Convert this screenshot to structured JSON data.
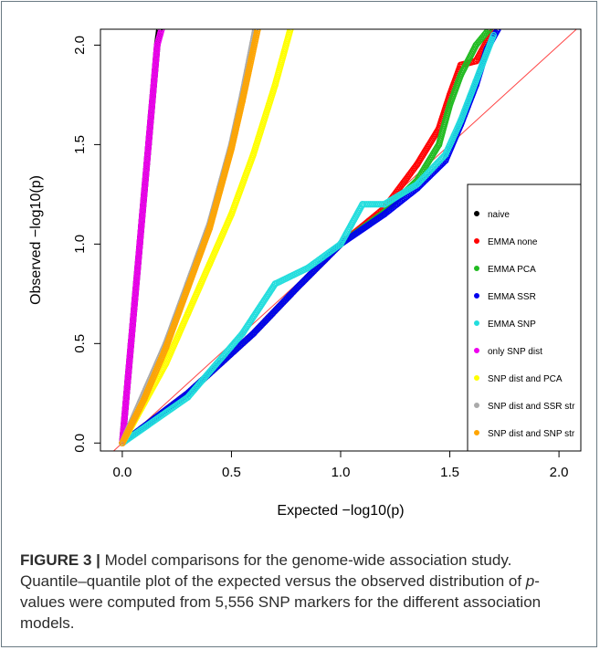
{
  "chart_data": {
    "type": "scatter",
    "xlabel": "Expected  −log10(p)",
    "ylabel": "Observed  −log10(p)",
    "xlim": [
      -0.1,
      2.1
    ],
    "ylim": [
      -0.04,
      2.08
    ],
    "xticks": [
      "0.0",
      "0.5",
      "1.0",
      "1.5",
      "2.0"
    ],
    "yticks": [
      "0.0",
      "0.5",
      "1.0",
      "1.5",
      "2.0"
    ],
    "xtick_values": [
      0,
      0.5,
      1.0,
      1.5,
      2.0
    ],
    "ytick_values": [
      0,
      0.5,
      1.0,
      1.5,
      2.0
    ],
    "grid": false,
    "legend_position": "right",
    "reference_line": {
      "color": "#ff4444",
      "from": [
        -0.1,
        -0.1
      ],
      "to": [
        2.1,
        2.1
      ]
    },
    "series": [
      {
        "name": "naive",
        "color": "#000000",
        "points": [
          [
            0,
            0
          ],
          [
            0.04,
            0.5
          ],
          [
            0.08,
            1.0
          ],
          [
            0.12,
            1.5
          ],
          [
            0.16,
            2.0
          ],
          [
            0.17,
            2.08
          ]
        ]
      },
      {
        "name": "EMMA none",
        "color": "#ff0000",
        "points": [
          [
            0,
            0
          ],
          [
            0.3,
            0.25
          ],
          [
            0.6,
            0.55
          ],
          [
            0.8,
            0.78
          ],
          [
            1.0,
            1.0
          ],
          [
            1.2,
            1.18
          ],
          [
            1.35,
            1.4
          ],
          [
            1.45,
            1.58
          ],
          [
            1.5,
            1.75
          ],
          [
            1.55,
            1.9
          ],
          [
            1.62,
            1.92
          ],
          [
            1.7,
            2.08
          ]
        ]
      },
      {
        "name": "EMMA PCA",
        "color": "#22bb22",
        "points": [
          [
            0,
            0
          ],
          [
            0.3,
            0.25
          ],
          [
            0.6,
            0.55
          ],
          [
            0.8,
            0.78
          ],
          [
            1.0,
            1.0
          ],
          [
            1.2,
            1.16
          ],
          [
            1.35,
            1.32
          ],
          [
            1.45,
            1.5
          ],
          [
            1.5,
            1.7
          ],
          [
            1.55,
            1.85
          ],
          [
            1.62,
            2.0
          ],
          [
            1.68,
            2.08
          ]
        ]
      },
      {
        "name": "EMMA SSR",
        "color": "#0000ee",
        "points": [
          [
            0,
            0
          ],
          [
            0.3,
            0.25
          ],
          [
            0.6,
            0.55
          ],
          [
            0.8,
            0.78
          ],
          [
            1.0,
            1.0
          ],
          [
            1.2,
            1.15
          ],
          [
            1.35,
            1.28
          ],
          [
            1.48,
            1.42
          ],
          [
            1.55,
            1.6
          ],
          [
            1.62,
            1.8
          ],
          [
            1.67,
            1.98
          ],
          [
            1.72,
            2.08
          ]
        ]
      },
      {
        "name": "EMMA SNP",
        "color": "#22dddd",
        "points": [
          [
            0,
            0
          ],
          [
            0.3,
            0.23
          ],
          [
            0.55,
            0.55
          ],
          [
            0.7,
            0.8
          ],
          [
            0.85,
            0.88
          ],
          [
            1.0,
            1.0
          ],
          [
            1.1,
            1.2
          ],
          [
            1.2,
            1.2
          ],
          [
            1.35,
            1.3
          ],
          [
            1.48,
            1.45
          ],
          [
            1.55,
            1.62
          ],
          [
            1.62,
            1.82
          ],
          [
            1.7,
            2.05
          ]
        ]
      },
      {
        "name": "only SNP dist",
        "color": "#ee00ee",
        "points": [
          [
            0,
            0
          ],
          [
            0.04,
            0.5
          ],
          [
            0.08,
            1.0
          ],
          [
            0.12,
            1.5
          ],
          [
            0.16,
            2.0
          ],
          [
            0.18,
            2.08
          ]
        ]
      },
      {
        "name": "SNP dist and PCA",
        "color": "#ffff00",
        "points": [
          [
            0,
            0
          ],
          [
            0.1,
            0.2
          ],
          [
            0.2,
            0.4
          ],
          [
            0.3,
            0.65
          ],
          [
            0.4,
            0.9
          ],
          [
            0.5,
            1.15
          ],
          [
            0.6,
            1.45
          ],
          [
            0.7,
            1.8
          ],
          [
            0.77,
            2.08
          ]
        ]
      },
      {
        "name": "SNP dist and SSR str",
        "color": "#aaaaaa",
        "points": [
          [
            0,
            0
          ],
          [
            0.1,
            0.25
          ],
          [
            0.2,
            0.5
          ],
          [
            0.3,
            0.8
          ],
          [
            0.4,
            1.1
          ],
          [
            0.5,
            1.5
          ],
          [
            0.55,
            1.75
          ],
          [
            0.61,
            2.08
          ]
        ]
      },
      {
        "name": "SNP dist and SNP str",
        "color": "#ffa500",
        "points": [
          [
            0,
            0
          ],
          [
            0.1,
            0.22
          ],
          [
            0.2,
            0.48
          ],
          [
            0.3,
            0.78
          ],
          [
            0.4,
            1.08
          ],
          [
            0.5,
            1.48
          ],
          [
            0.55,
            1.72
          ],
          [
            0.62,
            2.08
          ]
        ]
      }
    ]
  },
  "caption": {
    "label": "FIGURE 3 |",
    "text_1": " Model comparisons for the genome-wide association study. Quantile–quantile plot of the expected versus the observed distribution of ",
    "pvalue": "p",
    "text_2": "-values were computed from 5,556 SNP markers for the different association models."
  }
}
